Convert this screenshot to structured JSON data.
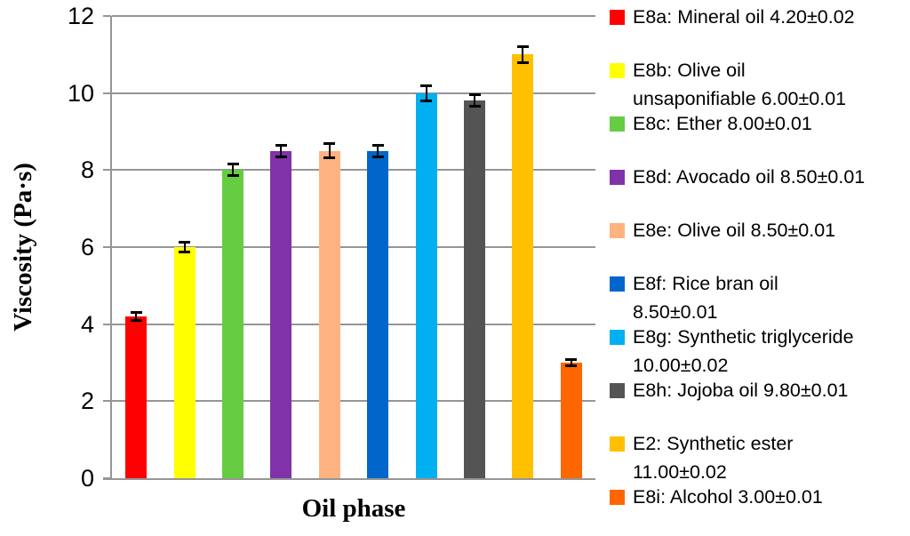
{
  "chart_data": {
    "type": "bar",
    "title": "",
    "xlabel": "Oil phase",
    "ylabel": "Viscosity (Pa·s)",
    "ylim": [
      0,
      12
    ],
    "yticks": [
      0,
      2,
      4,
      6,
      8,
      10,
      12
    ],
    "grid": true,
    "legend_position": "right",
    "categories": [
      "E8a",
      "E8b",
      "E8c",
      "E8d",
      "E8e",
      "E8f",
      "E8g",
      "E8h",
      "E2",
      "E8i"
    ],
    "series": [
      {
        "name": "Viscosity (Pa·s)",
        "values": [
          4.2,
          6.0,
          8.0,
          8.5,
          8.5,
          8.5,
          10.0,
          9.8,
          11.0,
          3.0
        ]
      }
    ],
    "errors_drawn": [
      0.1,
      0.12,
      0.15,
      0.15,
      0.18,
      0.15,
      0.2,
      0.15,
      0.2,
      0.08
    ],
    "bar_colors": [
      "#FF0000",
      "#FFFF00",
      "#66CC41",
      "#8032A8",
      "#FFB380",
      "#0066CC",
      "#00B0F0",
      "#545454",
      "#FFC000",
      "#FF6600"
    ],
    "legend": [
      {
        "id": "E8a",
        "color": "#FF0000",
        "lines": [
          "E8a: Mineral oil 4.20±0.02"
        ]
      },
      {
        "id": "E8b",
        "color": "#FFFF00",
        "lines": [
          "E8b: Olive oil",
          "unsaponifiable 6.00±0.01"
        ]
      },
      {
        "id": "E8c",
        "color": "#66CC41",
        "lines": [
          "E8c: Ether 8.00±0.01"
        ]
      },
      {
        "id": "E8d",
        "color": "#8032A8",
        "lines": [
          "E8d: Avocado oil 8.50±0.01"
        ]
      },
      {
        "id": "E8e",
        "color": "#FFB380",
        "lines": [
          "E8e: Olive oil 8.50±0.01"
        ]
      },
      {
        "id": "E8f",
        "color": "#0066CC",
        "lines": [
          "E8f: Rice bran oil",
          "8.50±0.01"
        ]
      },
      {
        "id": "E8g",
        "color": "#00B0F0",
        "lines": [
          "E8g: Synthetic triglyceride",
          "10.00±0.02"
        ]
      },
      {
        "id": "E8h",
        "color": "#545454",
        "lines": [
          "E8h: Jojoba oil 9.80±0.01"
        ]
      },
      {
        "id": "E2",
        "color": "#FFC000",
        "lines": [
          "E2: Synthetic ester",
          "11.00±0.02"
        ]
      },
      {
        "id": "E8i",
        "color": "#FF6600",
        "lines": [
          "E8i: Alcohol 3.00±0.01"
        ]
      }
    ]
  }
}
